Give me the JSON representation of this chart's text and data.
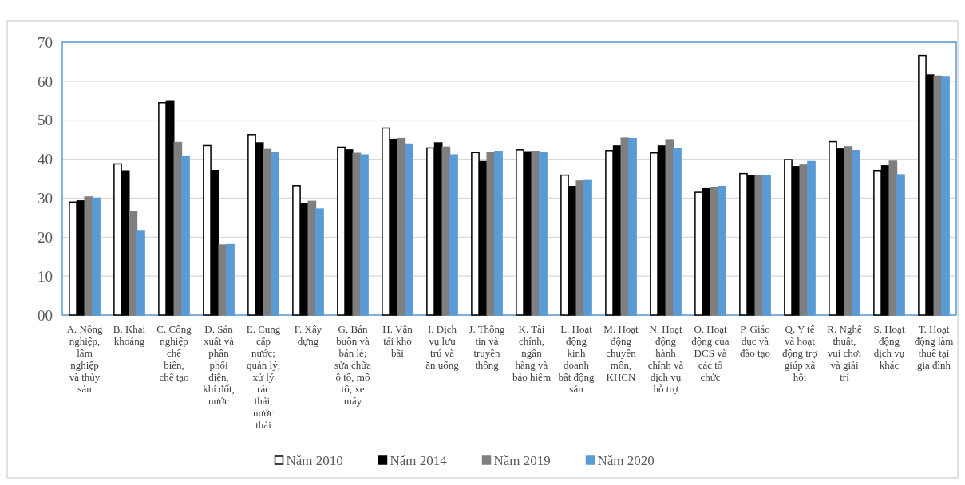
{
  "chart_data": {
    "type": "bar",
    "categories": [
      "A. Nông nghiệp, lâm nghiệp và thủy sản",
      "B. Khai khoáng",
      "C. Công nghiệp chế biến, chế tạo",
      "D. Sản xuất và phân phối điện, khí đốt, nước",
      "E. Cung cấp nước; quản lý, xử lý rác thải, nước thải",
      "F. Xây dựng",
      "G. Bán buôn và bán lẻ; sửa chữa ô tô, mô tô, xe máy",
      "H. Vận tải kho bãi",
      "I. Dịch vụ lưu trú và ăn uống",
      "J. Thông tin và truyền thông",
      "K. Tài chính, ngân hàng và bảo hiểm",
      "L. Hoạt động kinh doanh bất động sản",
      "M. Hoạt động chuyên môn, KHCN",
      "N. Hoạt động hành chính và dịch vụ hỗ trợ",
      "O. Hoạt động của ĐCS và các tổ chức",
      "P. Giáo dục và đào tạo",
      "Q. Y tế và hoạt động trợ giúp xã hội",
      "R. Nghệ thuật, vui chơi và giải trí",
      "S. Hoạt động dịch vụ khác",
      "T. Hoạt động làm thuê tại gia đình"
    ],
    "series": [
      {
        "name": "Năm 2010",
        "color": "#ffffff",
        "values": [
          29,
          38.8,
          54.5,
          43.5,
          46.3,
          33.2,
          43.1,
          48,
          42.9,
          41.7,
          42.4,
          35.9,
          42.2,
          41.6,
          31.5,
          36.3,
          39.9,
          44.5,
          37.1,
          66.6
        ]
      },
      {
        "name": "Năm 2014",
        "color": "#000000",
        "values": [
          29.3,
          37,
          55,
          37.1,
          44.2,
          28.7,
          42.4,
          45.1,
          44.2,
          39.4,
          41.9,
          33,
          43.4,
          43.4,
          32.4,
          35.7,
          38.1,
          42.6,
          38.3,
          61.6
        ]
      },
      {
        "name": "Năm 2019",
        "color": "#7f7f7f",
        "values": [
          30.3,
          26.6,
          44.3,
          18,
          42.5,
          29.2,
          41.5,
          45.3,
          43.1,
          41.8,
          42,
          34.4,
          45.4,
          45,
          32.8,
          35.7,
          38.5,
          43.2,
          39.5,
          61.3
        ]
      },
      {
        "name": "Năm 2020",
        "color": "#5b9bd5",
        "values": [
          30,
          21.7,
          40.8,
          18.1,
          41.8,
          27.2,
          41.1,
          43.9,
          41.1,
          42,
          41.6,
          34.5,
          45.3,
          42.8,
          33,
          35.7,
          39.4,
          42.2,
          36,
          61.2
        ]
      }
    ],
    "ylim": [
      0,
      70
    ],
    "yticks": [
      {
        "value": 0,
        "label": "00"
      },
      10,
      20,
      30,
      40,
      50,
      60,
      70
    ],
    "grid": "y",
    "legend": "bottom"
  }
}
